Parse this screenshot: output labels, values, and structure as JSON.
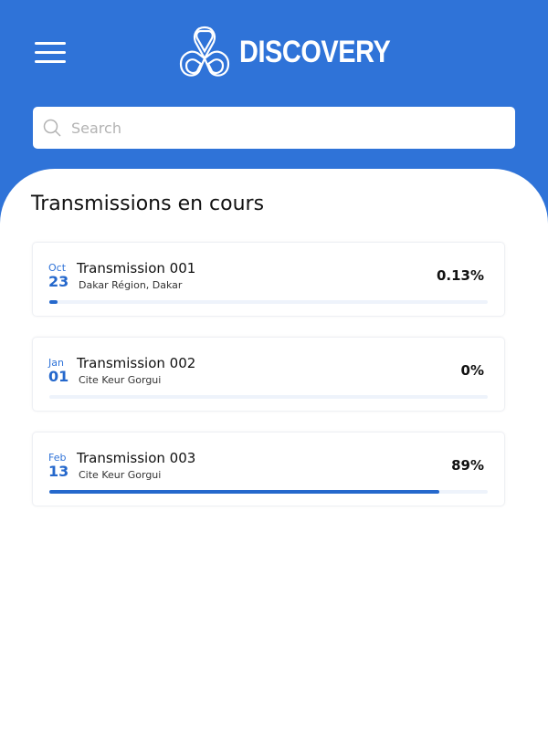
{
  "header": {
    "brand": "DISCOVERY",
    "menu_icon": "hamburger-menu-icon",
    "logo_icon": "trefoil-knot-logo",
    "accent_color": "#2f73d8"
  },
  "search": {
    "placeholder": "Search",
    "value": "",
    "icon": "search-icon"
  },
  "main": {
    "title": "Transmissions en cours",
    "transmissions": [
      {
        "month": "Oct",
        "day": "23",
        "name": "Transmission 001",
        "location": "Dakar Région, Dakar",
        "percent_label": "0.13%",
        "progress": 0.0013
      },
      {
        "month": "Jan",
        "day": "01",
        "name": "Transmission 002",
        "location": "Cite Keur Gorgui",
        "percent_label": "0%",
        "progress": 0
      },
      {
        "month": "Feb",
        "day": "13",
        "name": "Transmission 003",
        "location": "Cite Keur Gorgui",
        "percent_label": "89%",
        "progress": 0.89
      }
    ]
  }
}
